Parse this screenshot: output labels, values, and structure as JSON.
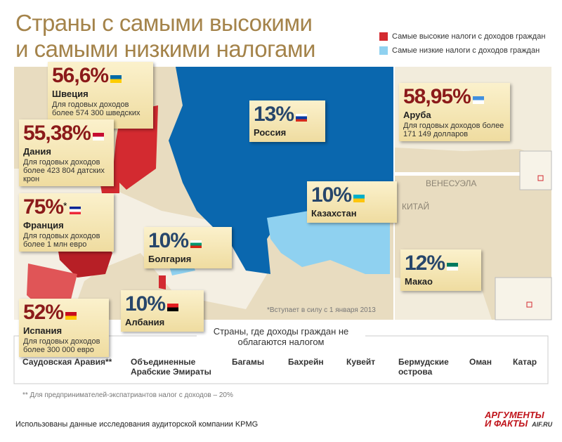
{
  "title": [
    "Страны с самыми высокими",
    "и самыми низкими налогами"
  ],
  "legend": [
    {
      "label": "Самые высокие налоги с доходов граждан",
      "color": "#d32a30"
    },
    {
      "label": "Самые низкие налоги с доходов граждан",
      "color": "#8fd1f0"
    }
  ],
  "callouts": [
    {
      "rate": "56,6%",
      "country": "Швеция",
      "note": "Для годовых доходов более 574 300 шведских крон"
    },
    {
      "rate": "55,38%",
      "country": "Дания",
      "note": "Для годовых доходов более 423 804 датских крон"
    },
    {
      "rate": "75%",
      "mark": "*",
      "country": "Франция",
      "note": "Для годовых доходов более 1 млн евро"
    },
    {
      "rate": "52%",
      "country": "Испания",
      "note": "Для годовых доходов более 300 000 евро"
    },
    {
      "rate": "58,95%",
      "country": "Аруба",
      "note": "Для годовых доходов более 171 149 долларов"
    },
    {
      "rate": "13%",
      "country": "Россия"
    },
    {
      "rate": "10%",
      "country": "Казахстан"
    },
    {
      "rate": "10%",
      "country": "Болгария"
    },
    {
      "rate": "10%",
      "country": "Албания"
    },
    {
      "rate": "12%",
      "country": "Макао"
    }
  ],
  "map_labels": [
    "ВЕНЕСУЭЛА",
    "КИТАЙ"
  ],
  "map_footnote": "*Вступает в силу с 1 января 2013",
  "no_tax": {
    "title": "Страны, где доходы граждан не облагаются налогом",
    "countries": [
      "Саудовская Аравия**",
      "Объединенные Арабские Эмираты",
      "Багамы",
      "Бахрейн",
      "Кувейт",
      "Бермудские острова",
      "Оман",
      "Катар"
    ]
  },
  "footnote": "** Для предпринимателей-экспатриантов налог с доходов – 20%",
  "source": "Использованы данные исследования аудиторской компании KPMG",
  "logo": {
    "line1": "АРГУМЕНТЫ",
    "line2": "И ФАКТЫ",
    "site": "AIF.RU"
  }
}
